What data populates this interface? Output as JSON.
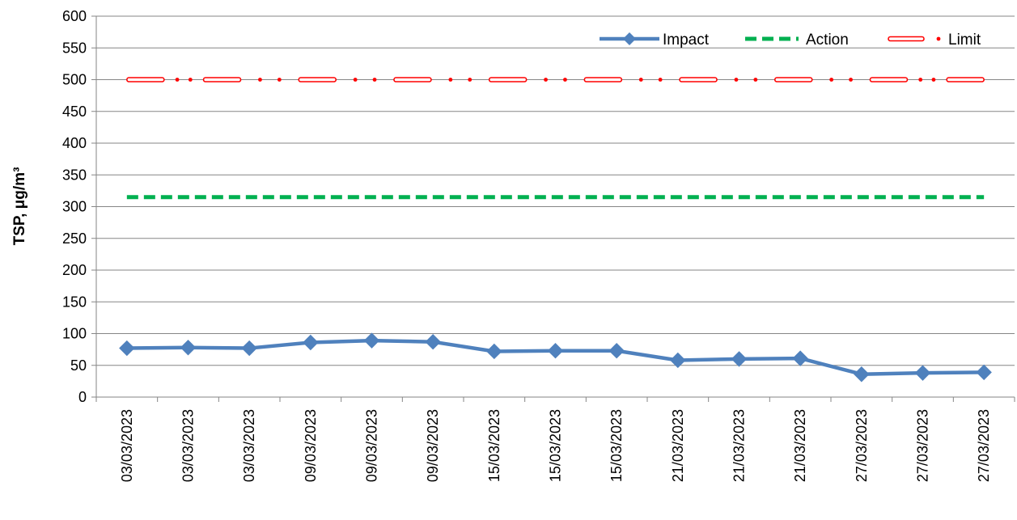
{
  "colors": {
    "impact": "#4F81BD",
    "action": "#00B050",
    "limit": "#FF0000",
    "grid": "#868686",
    "axis": "#868686"
  },
  "chart_data": {
    "type": "line",
    "ylabel": "TSP, μg/m³",
    "xlabel": "",
    "ylim": [
      0,
      600
    ],
    "y_ticks": [
      0,
      50,
      100,
      150,
      200,
      250,
      300,
      350,
      400,
      450,
      500,
      550,
      600
    ],
    "grid": true,
    "legend_position": "top-right",
    "categories": [
      "03/03/2023",
      "03/03/2023",
      "03/03/2023",
      "09/03/2023",
      "09/03/2023",
      "09/03/2023",
      "15/03/2023",
      "15/03/2023",
      "15/03/2023",
      "21/03/2023",
      "21/03/2023",
      "21/03/2023",
      "27/03/2023",
      "27/03/2023",
      "27/03/2023"
    ],
    "series": [
      {
        "name": "Impact",
        "style": "solid-diamond",
        "color": "#4F81BD",
        "values": [
          77,
          78,
          77,
          86,
          89,
          87,
          72,
          73,
          73,
          58,
          60,
          61,
          36,
          38,
          39
        ]
      },
      {
        "name": "Action",
        "style": "dashed",
        "color": "#00B050",
        "values": [
          315,
          315,
          315,
          315,
          315,
          315,
          315,
          315,
          315,
          315,
          315,
          315,
          315,
          315,
          315
        ]
      },
      {
        "name": "Limit",
        "style": "dash-dot-hollow",
        "color": "#FF0000",
        "values": [
          500,
          500,
          500,
          500,
          500,
          500,
          500,
          500,
          500,
          500,
          500,
          500,
          500,
          500,
          500
        ]
      }
    ]
  }
}
